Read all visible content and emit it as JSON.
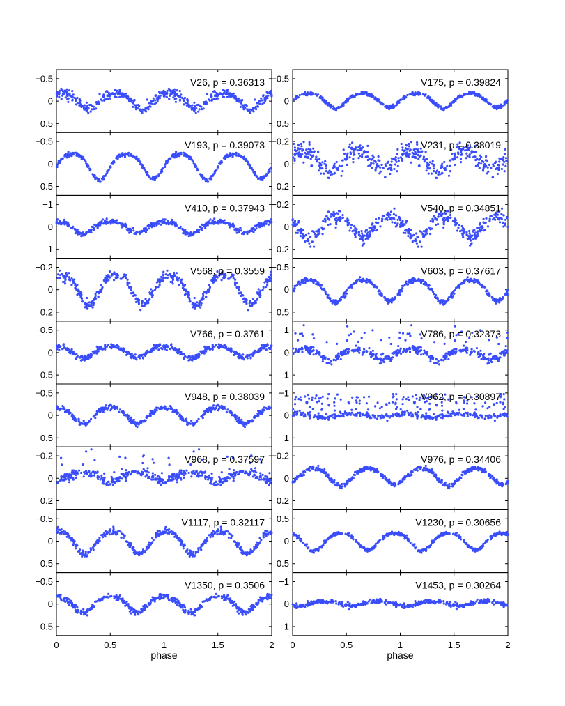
{
  "chart_data": {
    "type": "scatter",
    "layout": "9 rows x 2 columns of phased light curves",
    "xlabel": "phase",
    "xlim": [
      0,
      2
    ],
    "xticks": [
      0,
      0.5,
      1,
      1.5,
      2
    ],
    "xtick_labels": [
      "0",
      "0.5",
      "1",
      "1.5",
      "2"
    ],
    "y_reversed": true,
    "point_color": "#3a4dfa",
    "grid": false,
    "panels": [
      {
        "label": "V26, p = 0.36313",
        "ylim": [
          -0.7,
          0.7
        ],
        "yticks": [
          -0.5,
          0,
          0.5
        ],
        "ytick_labels": [
          "−0.5",
          "0",
          "0.5"
        ],
        "model": {
          "shape": "ew",
          "amp": 0.17,
          "depth1": 0.2,
          "depth2": 0.2,
          "min1": 0.3,
          "noise": 0.05
        }
      },
      {
        "label": "V175, p = 0.39824",
        "ylim": [
          -0.7,
          0.7
        ],
        "yticks": [
          -0.5,
          0,
          0.5
        ],
        "ytick_labels": [
          "−0.5",
          "0",
          "0.5"
        ],
        "model": {
          "shape": "ew",
          "amp": 0.17,
          "depth1": 0.18,
          "depth2": 0.15,
          "min1": 0.4,
          "noise": 0.02
        }
      },
      {
        "label": "V193, p = 0.39073",
        "ylim": [
          -0.7,
          0.7
        ],
        "yticks": [
          -0.5,
          0,
          0.5
        ],
        "ytick_labels": [
          "−0.5",
          "0",
          "0.5"
        ],
        "model": {
          "shape": "ew",
          "amp": 0.22,
          "depth1": 0.4,
          "depth2": 0.36,
          "min1": 0.4,
          "noise": 0.02
        }
      },
      {
        "label": "V231, p = 0.38019",
        "ylim": [
          -0.28,
          0.28
        ],
        "yticks": [
          -0.2,
          0,
          0.2
        ],
        "ytick_labels": [
          "−0.2",
          "0",
          "0.2"
        ],
        "model": {
          "shape": "ew",
          "amp": 0.11,
          "depth1": 0.08,
          "depth2": 0.06,
          "min1": 0.35,
          "noise": 0.04
        }
      },
      {
        "label": "V410, p = 0.37943",
        "ylim": [
          -1.4,
          1.4
        ],
        "yticks": [
          -1,
          0,
          1
        ],
        "ytick_labels": [
          "−1",
          "0",
          "1"
        ],
        "model": {
          "shape": "ew",
          "amp": 0.25,
          "depth1": 0.4,
          "depth2": 0.3,
          "min1": 0.25,
          "noise": 0.06
        }
      },
      {
        "label": "V540, p = 0.34851",
        "ylim": [
          -0.28,
          0.28
        ],
        "yticks": [
          -0.2,
          0,
          0.2
        ],
        "ytick_labels": [
          "−0.2",
          "0",
          "0.2"
        ],
        "model": {
          "shape": "ew",
          "amp": 0.09,
          "depth1": 0.13,
          "depth2": 0.11,
          "min1": 0.15,
          "noise": 0.035
        }
      },
      {
        "label": "V568, p = 0.3559",
        "ylim": [
          -0.28,
          0.28
        ],
        "yticks": [
          -0.2,
          0,
          0.2
        ],
        "ytick_labels": [
          "−0.2",
          "0",
          "0.2"
        ],
        "model": {
          "shape": "ew",
          "amp": 0.13,
          "depth1": 0.16,
          "depth2": 0.15,
          "min1": 0.3,
          "noise": 0.025
        }
      },
      {
        "label": "V603, p = 0.37617",
        "ylim": [
          -0.7,
          0.7
        ],
        "yticks": [
          -0.5,
          0,
          0.5
        ],
        "ytick_labels": [
          "−0.5",
          "0",
          "0.5"
        ],
        "model": {
          "shape": "ew",
          "amp": 0.22,
          "depth1": 0.32,
          "depth2": 0.28,
          "min1": 0.4,
          "noise": 0.025
        }
      },
      {
        "label": "V766, p = 0.3761",
        "ylim": [
          -0.7,
          0.7
        ],
        "yticks": [
          -0.5,
          0,
          0.5
        ],
        "ytick_labels": [
          "−0.5",
          "0",
          "0.5"
        ],
        "model": {
          "shape": "ew",
          "amp": 0.14,
          "depth1": 0.14,
          "depth2": 0.12,
          "min1": 0.25,
          "noise": 0.03
        }
      },
      {
        "label": "V786, p = 0.32373",
        "ylim": [
          -1.4,
          1.4
        ],
        "yticks": [
          -1,
          0,
          1
        ],
        "ytick_labels": [
          "−1",
          "0",
          "1"
        ],
        "model": {
          "shape": "ew",
          "amp": 0.15,
          "depth1": 0.4,
          "depth2": 0.35,
          "min1": 0.35,
          "noise": 0.08,
          "outliers": 0.15
        }
      },
      {
        "label": "V948, p = 0.38039",
        "ylim": [
          -0.7,
          0.7
        ],
        "yticks": [
          -0.5,
          0,
          0.5
        ],
        "ytick_labels": [
          "−0.5",
          "0",
          "0.5"
        ],
        "model": {
          "shape": "ew",
          "amp": 0.17,
          "depth1": 0.22,
          "depth2": 0.2,
          "min1": 0.25,
          "noise": 0.03
        }
      },
      {
        "label": "V962, p = 0.30897",
        "ylim": [
          -1.4,
          1.4
        ],
        "yticks": [
          -1,
          0,
          1
        ],
        "ytick_labels": [
          "−1",
          "0",
          "1"
        ],
        "model": {
          "shape": "ew",
          "amp": 0.06,
          "depth1": 0.1,
          "depth2": 0.08,
          "min1": 0.3,
          "noise": 0.06,
          "outliers": 0.3
        }
      },
      {
        "label": "V968, p = 0.37597",
        "ylim": [
          -0.28,
          0.28
        ],
        "yticks": [
          -0.2,
          0,
          0.2
        ],
        "ytick_labels": [
          "−0.2",
          "0",
          "0.2"
        ],
        "model": {
          "shape": "ew",
          "amp": 0.055,
          "depth1": 0.04,
          "depth2": 0.035,
          "min1": 0.5,
          "noise": 0.02,
          "outliers": 0.1
        }
      },
      {
        "label": "V976, p = 0.34406",
        "ylim": [
          -0.28,
          0.28
        ],
        "yticks": [
          -0.2,
          0,
          0.2
        ],
        "ytick_labels": [
          "−0.2",
          "0",
          "0.2"
        ],
        "model": {
          "shape": "ew",
          "amp": 0.09,
          "depth1": 0.08,
          "depth2": 0.06,
          "min1": 0.45,
          "noise": 0.01
        }
      },
      {
        "label": "V1117, p = 0.32117",
        "ylim": [
          -0.7,
          0.7
        ],
        "yticks": [
          -0.5,
          0,
          0.5
        ],
        "ytick_labels": [
          "−0.5",
          "0",
          "0.5"
        ],
        "model": {
          "shape": "ew",
          "amp": 0.22,
          "depth1": 0.35,
          "depth2": 0.32,
          "min1": 0.27,
          "noise": 0.035
        }
      },
      {
        "label": "V1230, p = 0.30656",
        "ylim": [
          -0.7,
          0.7
        ],
        "yticks": [
          -0.5,
          0,
          0.5
        ],
        "ytick_labels": [
          "−0.5",
          "0",
          "0.5"
        ],
        "model": {
          "shape": "ew",
          "amp": 0.18,
          "depth1": 0.25,
          "depth2": 0.22,
          "min1": 0.2,
          "noise": 0.02
        }
      },
      {
        "label": "V1350, p = 0.3506",
        "ylim": [
          -0.7,
          0.7
        ],
        "yticks": [
          -0.5,
          0,
          0.5
        ],
        "ytick_labels": [
          "−0.5",
          "0",
          "0.5"
        ],
        "model": {
          "shape": "ew",
          "amp": 0.17,
          "depth1": 0.22,
          "depth2": 0.2,
          "min1": 0.25,
          "noise": 0.035
        }
      },
      {
        "label": "V1453, p = 0.30264",
        "ylim": [
          -1.4,
          1.4
        ],
        "yticks": [
          -1,
          0,
          1
        ],
        "ytick_labels": [
          "−1",
          "0",
          "1"
        ],
        "model": {
          "shape": "ew",
          "amp": 0.12,
          "depth1": 0.12,
          "depth2": 0.1,
          "min1": 0.05,
          "noise": 0.05
        }
      }
    ]
  }
}
